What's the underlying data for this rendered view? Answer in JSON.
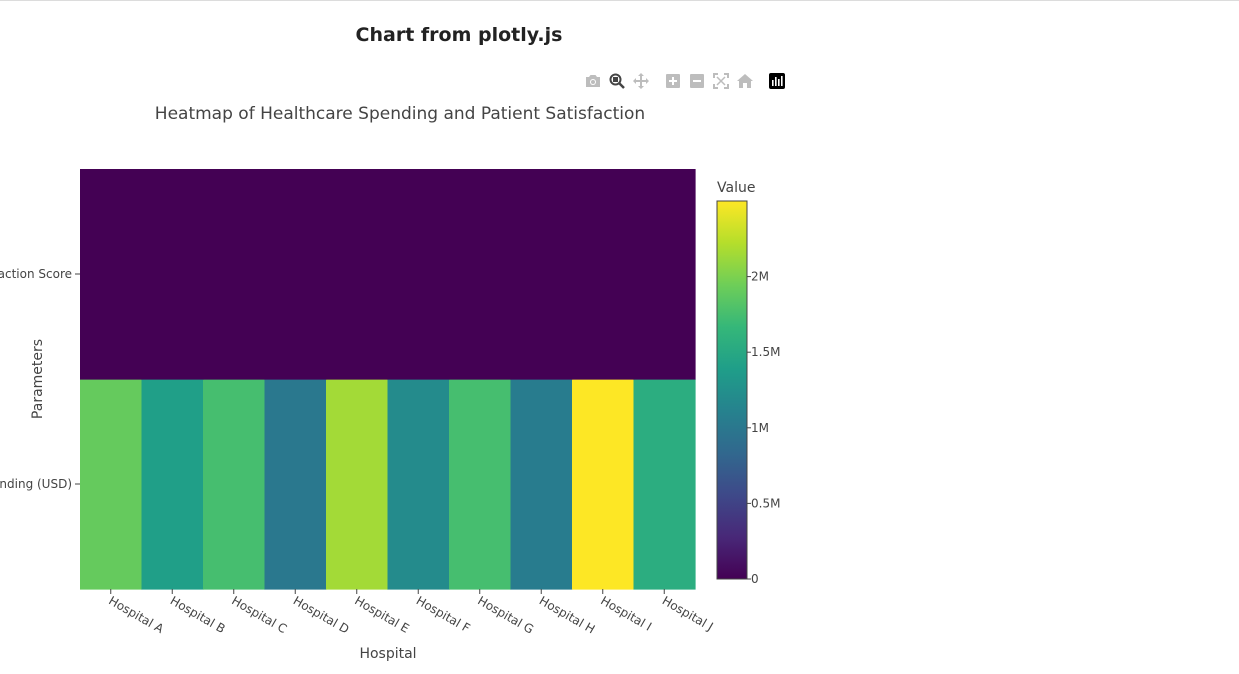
{
  "page": {
    "title": "Chart from plotly.js"
  },
  "modebar": {
    "buttons": [
      {
        "name": "camera-icon",
        "label": "Download plot as a png",
        "active": false
      },
      {
        "name": "zoom-icon",
        "label": "Zoom",
        "active": true
      },
      {
        "name": "pan-icon",
        "label": "Pan",
        "active": false
      },
      {
        "name": "zoom-in-icon",
        "label": "Zoom in",
        "active": false
      },
      {
        "name": "zoom-out-icon",
        "label": "Zoom out",
        "active": false
      },
      {
        "name": "autoscale-icon",
        "label": "Autoscale",
        "active": false
      },
      {
        "name": "home-icon",
        "label": "Reset axes",
        "active": false
      },
      {
        "name": "plotly-logo-icon",
        "label": "Produced with Plotly",
        "active": false
      }
    ]
  },
  "colors": {
    "viridis": [
      "#440154",
      "#482878",
      "#3e4989",
      "#31688e",
      "#26828e",
      "#1f9e89",
      "#35b779",
      "#6ece58",
      "#b5de2b",
      "#fde725"
    ]
  },
  "chart_data": {
    "type": "heatmap",
    "title": "Heatmap of Healthcare Spending and Patient Satisfaction",
    "xlabel": "Hospital",
    "ylabel": "Parameters",
    "x": [
      "Hospital A",
      "Hospital B",
      "Hospital C",
      "Hospital D",
      "Hospital E",
      "Hospital F",
      "Hospital G",
      "Hospital H",
      "Hospital I",
      "Hospital J"
    ],
    "y": [
      "Healthcare Spending (USD)",
      "Patient Satisfaction Score"
    ],
    "y_tick_labels_visible": [
      "nding (USD)",
      "action Score"
    ],
    "z": [
      [
        1900000,
        1400000,
        1750000,
        1000000,
        2150000,
        1200000,
        1750000,
        1050000,
        2500000,
        1550000
      ],
      [
        85,
        78,
        82,
        70,
        90,
        75,
        88,
        72,
        92,
        80
      ]
    ],
    "colorscale": "Viridis",
    "colorbar": {
      "title": "Value",
      "range": [
        0,
        2500000
      ],
      "ticks": [
        0,
        500000,
        1000000,
        1500000,
        2000000
      ],
      "ticklabels": [
        "0",
        "0.5M",
        "1M",
        "1.5M",
        "2M"
      ]
    }
  }
}
